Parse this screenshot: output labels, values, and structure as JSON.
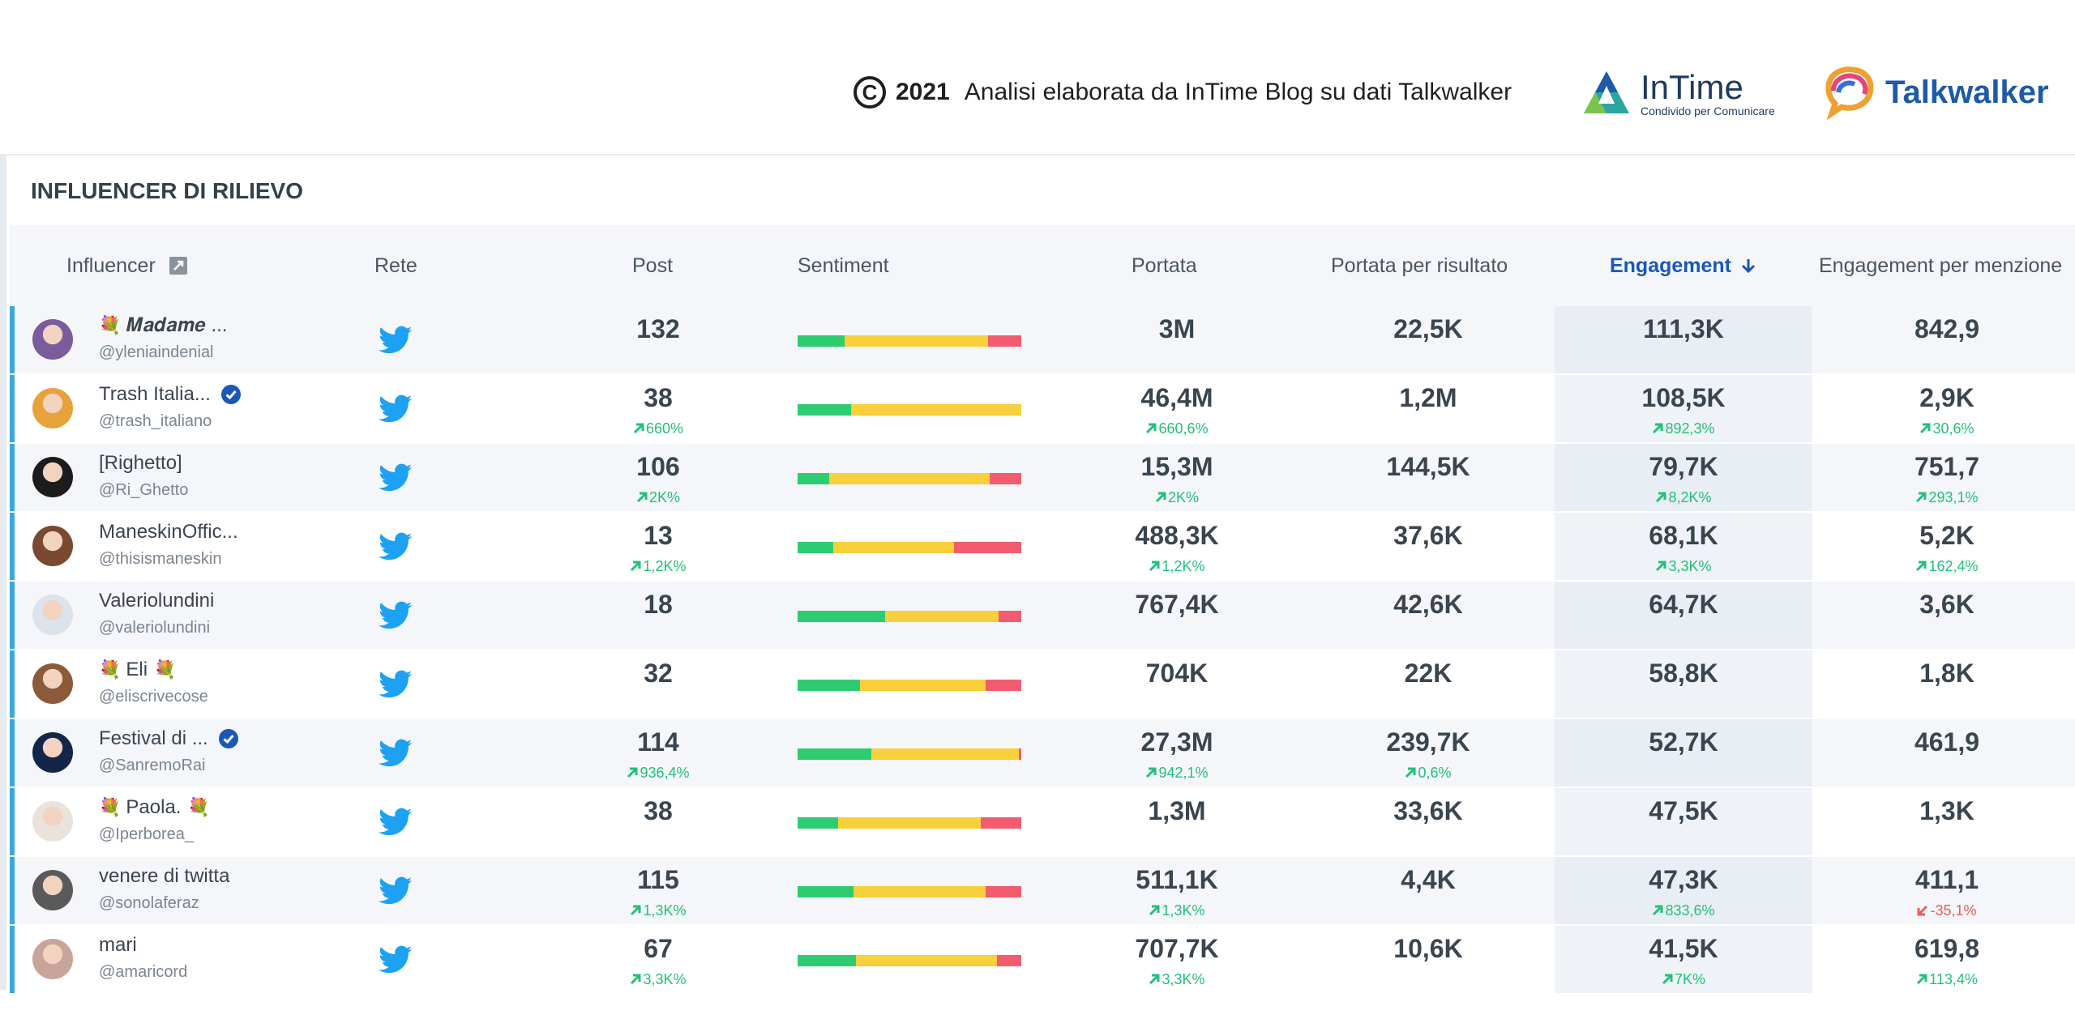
{
  "header": {
    "copyright_symbol": "C",
    "year": "2021",
    "credit_text": "Analisi elaborata da InTime Blog su dati Talkwalker",
    "intime_name": "InTime",
    "intime_tagline": "Condivido per Comunicare",
    "talkwalker_name": "Talkwalker"
  },
  "panel": {
    "title": "INFLUENCER DI RILIEVO",
    "columns": {
      "influencer": "Influencer",
      "rete": "Rete",
      "post": "Post",
      "sentiment": "Sentiment",
      "portata": "Portata",
      "portata_per_risultato": "Portata per risultato",
      "engagement": "Engagement",
      "engagement_per_menzione": "Engagement per menzione"
    }
  },
  "rows": [
    {
      "name": "𝑴𝒂𝒅𝒂𝒎𝒆 ...",
      "flower": true,
      "verified": false,
      "handle": "@yleniaindenial",
      "network": "twitter-icon",
      "post": "132",
      "post_chg": "",
      "sentiment": [
        0.21,
        0.64,
        0.15
      ],
      "portata": "3M",
      "portata_chg": "",
      "portata_pr": "22,5K",
      "portata_pr_chg": "",
      "engagement": "111,3K",
      "engagement_chg": "",
      "epm": "842,9",
      "epm_chg": "",
      "epm_dir": "up",
      "avatar": "#7a5c9c"
    },
    {
      "name": "Trash Italia...",
      "flower": false,
      "verified": true,
      "handle": "@trash_italiano",
      "network": "twitter-icon",
      "post": "38",
      "post_chg": "660%",
      "sentiment": [
        0.24,
        0.76,
        0.0
      ],
      "portata": "46,4M",
      "portata_chg": "660,6%",
      "portata_pr": "1,2M",
      "portata_pr_chg": "",
      "engagement": "108,5K",
      "engagement_chg": "892,3%",
      "epm": "2,9K",
      "epm_chg": "30,6%",
      "epm_dir": "up",
      "avatar": "#e8a23c"
    },
    {
      "name": "[Righetto]",
      "flower": false,
      "verified": false,
      "handle": "@Ri_Ghetto",
      "network": "twitter-icon",
      "post": "106",
      "post_chg": "2K%",
      "sentiment": [
        0.14,
        0.72,
        0.14
      ],
      "portata": "15,3M",
      "portata_chg": "2K%",
      "portata_pr": "144,5K",
      "portata_pr_chg": "",
      "engagement": "79,7K",
      "engagement_chg": "8,2K%",
      "epm": "751,7",
      "epm_chg": "293,1%",
      "epm_dir": "up",
      "avatar": "#1c1c1c"
    },
    {
      "name": "ManeskinOffic...",
      "flower": false,
      "verified": false,
      "handle": "@thisismaneskin",
      "network": "twitter-icon",
      "post": "13",
      "post_chg": "1,2K%",
      "sentiment": [
        0.16,
        0.54,
        0.3
      ],
      "portata": "488,3K",
      "portata_chg": "1,2K%",
      "portata_pr": "37,6K",
      "portata_pr_chg": "",
      "engagement": "68,1K",
      "engagement_chg": "3,3K%",
      "epm": "5,2K",
      "epm_chg": "162,4%",
      "epm_dir": "up",
      "avatar": "#7a4a30"
    },
    {
      "name": "Valeriolundini",
      "flower": false,
      "verified": false,
      "handle": "@valeriolundini",
      "network": "twitter-icon",
      "post": "18",
      "post_chg": "",
      "sentiment": [
        0.39,
        0.51,
        0.1
      ],
      "portata": "767,4K",
      "portata_chg": "",
      "portata_pr": "42,6K",
      "portata_pr_chg": "",
      "engagement": "64,7K",
      "engagement_chg": "",
      "epm": "3,6K",
      "epm_chg": "",
      "epm_dir": "up",
      "avatar": "#dde3ea"
    },
    {
      "name": "Eli",
      "flower": true,
      "flower_end": true,
      "verified": false,
      "handle": "@eliscrivecose",
      "network": "twitter-icon",
      "post": "32",
      "post_chg": "",
      "sentiment": [
        0.28,
        0.56,
        0.16
      ],
      "portata": "704K",
      "portata_chg": "",
      "portata_pr": "22K",
      "portata_pr_chg": "",
      "engagement": "58,8K",
      "engagement_chg": "",
      "epm": "1,8K",
      "epm_chg": "",
      "epm_dir": "up",
      "avatar": "#8a5a3a"
    },
    {
      "name": "Festival di ...",
      "flower": false,
      "verified": true,
      "handle": "@SanremoRai",
      "network": "twitter-icon",
      "post": "114",
      "post_chg": "936,4%",
      "sentiment": [
        0.33,
        0.66,
        0.01
      ],
      "portata": "27,3M",
      "portata_chg": "942,1%",
      "portata_pr": "239,7K",
      "portata_pr_chg": "0,6%",
      "engagement": "52,7K",
      "engagement_chg": "",
      "epm": "461,9",
      "epm_chg": "",
      "epm_dir": "up",
      "avatar": "#13264a"
    },
    {
      "name": "Paola.",
      "flower": true,
      "flower_end": true,
      "verified": false,
      "handle": "@Iperborea_",
      "network": "twitter-icon",
      "post": "38",
      "post_chg": "",
      "sentiment": [
        0.18,
        0.64,
        0.18
      ],
      "portata": "1,3M",
      "portata_chg": "",
      "portata_pr": "33,6K",
      "portata_pr_chg": "",
      "engagement": "47,5K",
      "engagement_chg": "",
      "epm": "1,3K",
      "epm_chg": "",
      "epm_dir": "up",
      "avatar": "#e9e3dc"
    },
    {
      "name": "venere di twitta",
      "flower": false,
      "verified": false,
      "handle": "@sonolaferaz",
      "network": "twitter-icon",
      "post": "115",
      "post_chg": "1,3K%",
      "sentiment": [
        0.25,
        0.59,
        0.16
      ],
      "portata": "511,1K",
      "portata_chg": "1,3K%",
      "portata_pr": "4,4K",
      "portata_pr_chg": "",
      "engagement": "47,3K",
      "engagement_chg": "833,6%",
      "epm": "411,1",
      "epm_chg": "-35,1%",
      "epm_dir": "down",
      "avatar": "#5a5a5a"
    },
    {
      "name": "mari",
      "flower": false,
      "verified": false,
      "handle": "@amaricord",
      "network": "twitter-icon",
      "post": "67",
      "post_chg": "3,3K%",
      "sentiment": [
        0.26,
        0.63,
        0.11
      ],
      "portata": "707,7K",
      "portata_chg": "3,3K%",
      "portata_pr": "10,6K",
      "portata_pr_chg": "",
      "engagement": "41,5K",
      "engagement_chg": "7K%",
      "epm": "619,8",
      "epm_chg": "113,4%",
      "epm_dir": "up",
      "avatar": "#c9a49a"
    }
  ]
}
